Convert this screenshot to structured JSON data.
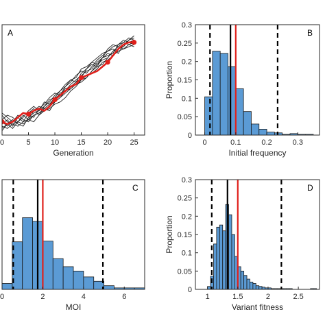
{
  "chart_data": [
    {
      "panel": "A",
      "type": "line",
      "xlabel": "Generation",
      "ylabel": "",
      "xlim": [
        0,
        27
      ],
      "ylim": [
        0,
        1
      ],
      "xticks": [
        0,
        5,
        10,
        15,
        20,
        25
      ],
      "grid": false,
      "colors": {
        "lines": "#222222",
        "highlight": "#e0201b"
      },
      "series": [
        {
          "x": [
            0,
            1,
            2,
            3,
            4,
            5,
            6,
            7,
            8,
            9,
            10,
            11,
            12,
            13,
            14,
            15,
            16,
            17,
            18,
            19,
            20,
            21,
            22,
            23,
            24,
            25
          ],
          "values": [
            0.1,
            0.14,
            0.08,
            0.16,
            0.12,
            0.2,
            0.24,
            0.18,
            0.26,
            0.3,
            0.36,
            0.4,
            0.44,
            0.5,
            0.52,
            0.6,
            0.62,
            0.66,
            0.7,
            0.74,
            0.76,
            0.8,
            0.82,
            0.86,
            0.84,
            0.82
          ]
        },
        {
          "x": [
            0,
            1,
            2,
            3,
            4,
            5,
            6,
            7,
            8,
            9,
            10,
            11,
            12,
            13,
            14,
            15,
            16,
            17,
            18,
            19,
            20,
            21,
            22,
            23,
            24,
            25
          ],
          "values": [
            0.18,
            0.12,
            0.1,
            0.12,
            0.18,
            0.14,
            0.22,
            0.26,
            0.24,
            0.28,
            0.32,
            0.38,
            0.4,
            0.46,
            0.5,
            0.54,
            0.58,
            0.6,
            0.66,
            0.7,
            0.74,
            0.72,
            0.78,
            0.8,
            0.86,
            0.9
          ]
        },
        {
          "x": [
            0,
            1,
            2,
            3,
            4,
            5,
            6,
            7,
            8,
            9,
            10,
            11,
            12,
            13,
            14,
            15,
            16,
            17,
            18,
            19,
            20,
            21,
            22,
            23,
            24,
            25
          ],
          "values": [
            0.06,
            0.1,
            0.14,
            0.1,
            0.08,
            0.16,
            0.2,
            0.22,
            0.3,
            0.28,
            0.34,
            0.36,
            0.42,
            0.44,
            0.48,
            0.56,
            0.6,
            0.64,
            0.62,
            0.7,
            0.78,
            0.82,
            0.8,
            0.84,
            0.88,
            0.86
          ]
        },
        {
          "x": [
            0,
            1,
            2,
            3,
            4,
            5,
            6,
            7,
            8,
            9,
            10,
            11,
            12,
            13,
            14,
            15,
            16,
            17,
            18,
            19,
            20,
            21,
            22,
            23,
            24,
            25
          ],
          "values": [
            0.12,
            0.08,
            0.12,
            0.18,
            0.14,
            0.12,
            0.18,
            0.2,
            0.22,
            0.26,
            0.3,
            0.34,
            0.4,
            0.42,
            0.46,
            0.48,
            0.52,
            0.58,
            0.64,
            0.68,
            0.7,
            0.76,
            0.8,
            0.78,
            0.82,
            0.84
          ]
        },
        {
          "x": [
            0,
            1,
            2,
            3,
            4,
            5,
            6,
            7,
            8,
            9,
            10,
            11,
            12,
            13,
            14,
            15,
            16,
            17,
            18,
            19,
            20,
            21,
            22,
            23,
            24,
            25
          ],
          "values": [
            0.2,
            0.16,
            0.12,
            0.16,
            0.2,
            0.18,
            0.16,
            0.24,
            0.28,
            0.34,
            0.38,
            0.36,
            0.44,
            0.48,
            0.54,
            0.58,
            0.56,
            0.62,
            0.68,
            0.72,
            0.76,
            0.78,
            0.74,
            0.82,
            0.86,
            0.88
          ]
        },
        {
          "x": [
            0,
            1,
            2,
            3,
            4,
            5,
            6,
            7,
            8,
            9,
            10,
            11,
            12,
            13,
            14,
            15,
            16,
            17,
            18,
            19,
            20,
            21,
            22,
            23,
            24,
            25
          ],
          "values": [
            0.08,
            0.06,
            0.1,
            0.08,
            0.12,
            0.14,
            0.12,
            0.18,
            0.22,
            0.24,
            0.28,
            0.3,
            0.34,
            0.4,
            0.44,
            0.5,
            0.54,
            0.56,
            0.6,
            0.66,
            0.68,
            0.72,
            0.76,
            0.78,
            0.8,
            0.82
          ]
        },
        {
          "x": [
            0,
            1,
            2,
            3,
            4,
            5,
            6,
            7,
            8,
            9,
            10,
            11,
            12,
            13,
            14,
            15,
            16,
            17,
            18,
            19,
            20,
            21,
            22,
            23,
            24,
            25
          ],
          "values": [
            0.14,
            0.18,
            0.16,
            0.12,
            0.16,
            0.22,
            0.26,
            0.22,
            0.26,
            0.32,
            0.34,
            0.4,
            0.46,
            0.5,
            0.48,
            0.52,
            0.6,
            0.66,
            0.64,
            0.7,
            0.72,
            0.74,
            0.82,
            0.84,
            0.82,
            0.8
          ]
        },
        {
          "x": [
            0,
            1,
            2,
            3,
            4,
            5,
            6,
            7,
            8,
            9,
            10,
            11,
            12,
            13,
            14,
            15,
            16,
            17,
            18,
            19,
            20,
            21,
            22,
            23,
            24,
            25
          ],
          "values": [
            0.04,
            0.1,
            0.06,
            0.12,
            0.1,
            0.14,
            0.18,
            0.2,
            0.24,
            0.22,
            0.3,
            0.34,
            0.38,
            0.42,
            0.46,
            0.5,
            0.52,
            0.58,
            0.62,
            0.64,
            0.7,
            0.76,
            0.78,
            0.82,
            0.84,
            0.86
          ]
        }
      ],
      "highlight_series": {
        "x": [
          0,
          1,
          2,
          3,
          4,
          5,
          6,
          7,
          8,
          9,
          10,
          11,
          12,
          13,
          14,
          15,
          16,
          17,
          18,
          19,
          20,
          21,
          22,
          23,
          24,
          25
        ],
        "values": [
          0.12,
          0.1,
          0.12,
          0.16,
          0.2,
          0.19,
          0.22,
          0.24,
          0.22,
          0.26,
          0.32,
          0.36,
          0.4,
          0.44,
          0.46,
          0.52,
          0.54,
          0.56,
          0.58,
          0.62,
          0.66,
          0.72,
          0.78,
          0.82,
          0.84,
          0.84
        ],
        "marker_points": [
          0,
          5,
          10,
          15,
          20,
          25
        ]
      }
    },
    {
      "panel": "B",
      "type": "bar",
      "xlabel": "Initial frequency",
      "ylabel": "Proportion",
      "xlim": [
        -0.03,
        0.37
      ],
      "ylim": [
        0,
        0.3
      ],
      "xticks": [
        0,
        0.1,
        0.2,
        0.3
      ],
      "xtick_labels": [
        "0",
        "0.1",
        "0.2",
        "0.3"
      ],
      "yticks": [
        0,
        0.05,
        0.1,
        0.15,
        0.2,
        0.25,
        0.3
      ],
      "ytick_labels": [
        "0",
        "0.05",
        "0.1",
        "0.15",
        "0.2",
        "0.25",
        "0.3"
      ],
      "grid": false,
      "colors": {
        "bars": "#5b9bd5",
        "edge": "#1a1a1a",
        "mean": "#000000",
        "reference": "#e0201b"
      },
      "bin_edges": [
        0,
        0.025,
        0.05,
        0.075,
        0.1,
        0.125,
        0.15,
        0.175,
        0.2,
        0.225,
        0.25,
        0.275,
        0.3,
        0.325,
        0.35
      ],
      "values": [
        0.104,
        0.228,
        0.222,
        0.186,
        0.126,
        0.064,
        0.03,
        0.016,
        0.008,
        0.006,
        0.002,
        0.004,
        0.002,
        0.002
      ],
      "vlines": {
        "ci_low": 0.017,
        "mean": 0.083,
        "reference": 0.1,
        "ci_high": 0.235
      }
    },
    {
      "panel": "C",
      "type": "bar",
      "xlabel": "MOI",
      "ylabel": "",
      "xlim": [
        0,
        7
      ],
      "ylim": [
        0,
        0.3
      ],
      "xticks": [
        0,
        2,
        4,
        6
      ],
      "xtick_labels": [
        "0",
        "2",
        "4",
        "6"
      ],
      "grid": false,
      "colors": {
        "bars": "#5b9bd5",
        "edge": "#1a1a1a",
        "mean": "#000000",
        "reference": "#e0201b"
      },
      "bin_edges": [
        0,
        0.5,
        1.0,
        1.5,
        2.0,
        2.5,
        3.0,
        3.5,
        4.0,
        4.5,
        5.0,
        5.5,
        6.0,
        6.5,
        7.0
      ],
      "values": [
        0.016,
        0.13,
        0.196,
        0.186,
        0.132,
        0.084,
        0.062,
        0.05,
        0.034,
        0.022,
        0.01,
        0.004,
        0.004,
        0.004
      ],
      "vlines": {
        "ci_low": 0.55,
        "mean": 1.75,
        "reference": 2.0,
        "ci_high": 4.95
      }
    },
    {
      "panel": "D",
      "type": "bar",
      "xlabel": "Variant fitness",
      "ylabel": "Proportion",
      "xlim": [
        0.8,
        2.85
      ],
      "ylim": [
        0,
        0.3
      ],
      "xticks": [
        1,
        1.5,
        2,
        2.5
      ],
      "xtick_labels": [
        "1",
        "1.5",
        "2",
        "2.5"
      ],
      "yticks": [
        0,
        0.05,
        0.1,
        0.15,
        0.2,
        0.25,
        0.3
      ],
      "ytick_labels": [
        "0",
        "0.05",
        "0.1",
        "0.15",
        "0.2",
        "0.25",
        "0.3"
      ],
      "grid": false,
      "colors": {
        "bars": "#5b9bd5",
        "edge": "#1a1a1a",
        "mean": "#000000",
        "reference": "#e0201b"
      },
      "bin_edges": [
        1.0,
        1.05,
        1.1,
        1.15,
        1.2,
        1.25,
        1.3,
        1.35,
        1.4,
        1.45,
        1.5,
        1.55,
        1.6,
        1.65,
        1.7,
        1.75,
        1.8,
        1.85,
        1.9,
        1.95,
        2.0,
        2.05,
        2.1,
        2.15,
        2.2,
        2.25,
        2.3,
        2.35,
        2.4,
        2.45,
        2.5,
        2.55,
        2.6,
        2.65,
        2.7,
        2.75,
        2.8
      ],
      "values": [
        0.008,
        0.036,
        0.124,
        0.17,
        0.176,
        0.16,
        0.232,
        0.204,
        0.15,
        0.09,
        0.062,
        0.05,
        0.038,
        0.028,
        0.02,
        0.016,
        0.01,
        0.008,
        0.006,
        0.004,
        0.004,
        0.002,
        0.002,
        0.002,
        0.002,
        0.002,
        0.002,
        0.002,
        0,
        0,
        0,
        0,
        0,
        0,
        0.002,
        0.002
      ],
      "vlines": {
        "ci_low": 1.07,
        "mean": 1.33,
        "reference": 1.5,
        "ci_high": 2.22
      }
    }
  ]
}
